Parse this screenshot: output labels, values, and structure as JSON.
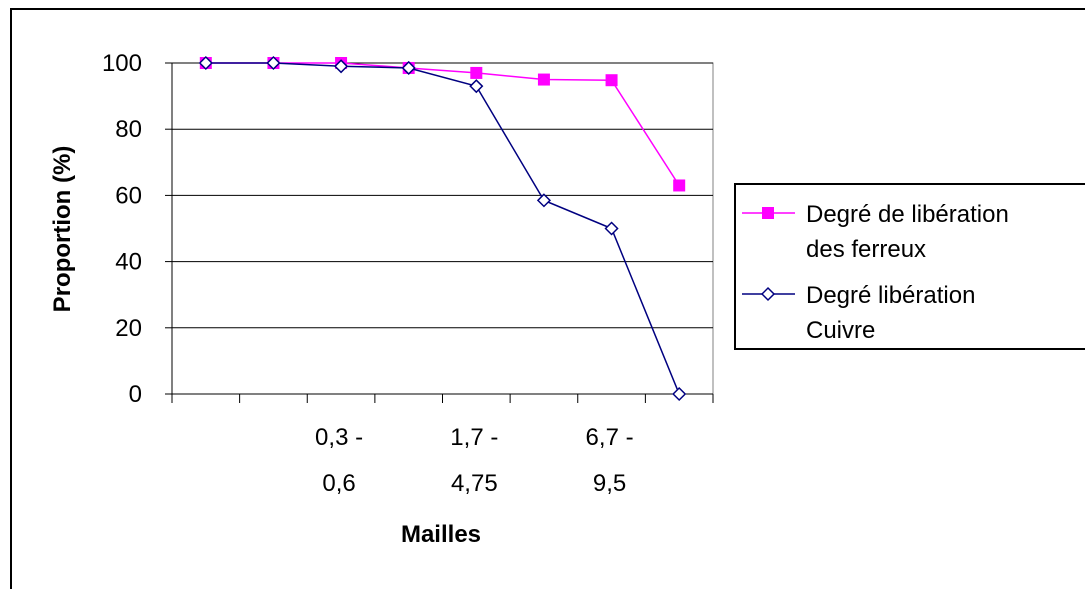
{
  "chart_data": {
    "type": "line",
    "xlabel": "Mailles",
    "ylabel": "Proportion (%)",
    "ylim": [
      0,
      100
    ],
    "yticks": [
      0,
      20,
      40,
      60,
      80,
      100
    ],
    "grid": "horizontal",
    "legend_position": "right",
    "point_count": 8,
    "x_tick_labels": [
      {
        "index": 2,
        "lines": [
          "0,3 -",
          "0,6"
        ]
      },
      {
        "index": 4,
        "lines": [
          "1,7 -",
          "4,75"
        ]
      },
      {
        "index": 6,
        "lines": [
          "6,7 -",
          "9,5"
        ]
      }
    ],
    "series": [
      {
        "name": "Degré de libération des ferreux",
        "legend_lines": [
          "Degré de libération",
          "des ferreux"
        ],
        "color": "#ff00ff",
        "marker": "square",
        "values": [
          100,
          100,
          100,
          98.5,
          97,
          95,
          94.8,
          63
        ]
      },
      {
        "name": "Degré libération Cuivre",
        "legend_lines": [
          "Degré libération",
          "Cuivre"
        ],
        "color": "#000080",
        "marker": "diamond",
        "values": [
          100,
          100,
          99,
          98.5,
          93,
          58.5,
          50,
          0
        ]
      }
    ]
  }
}
